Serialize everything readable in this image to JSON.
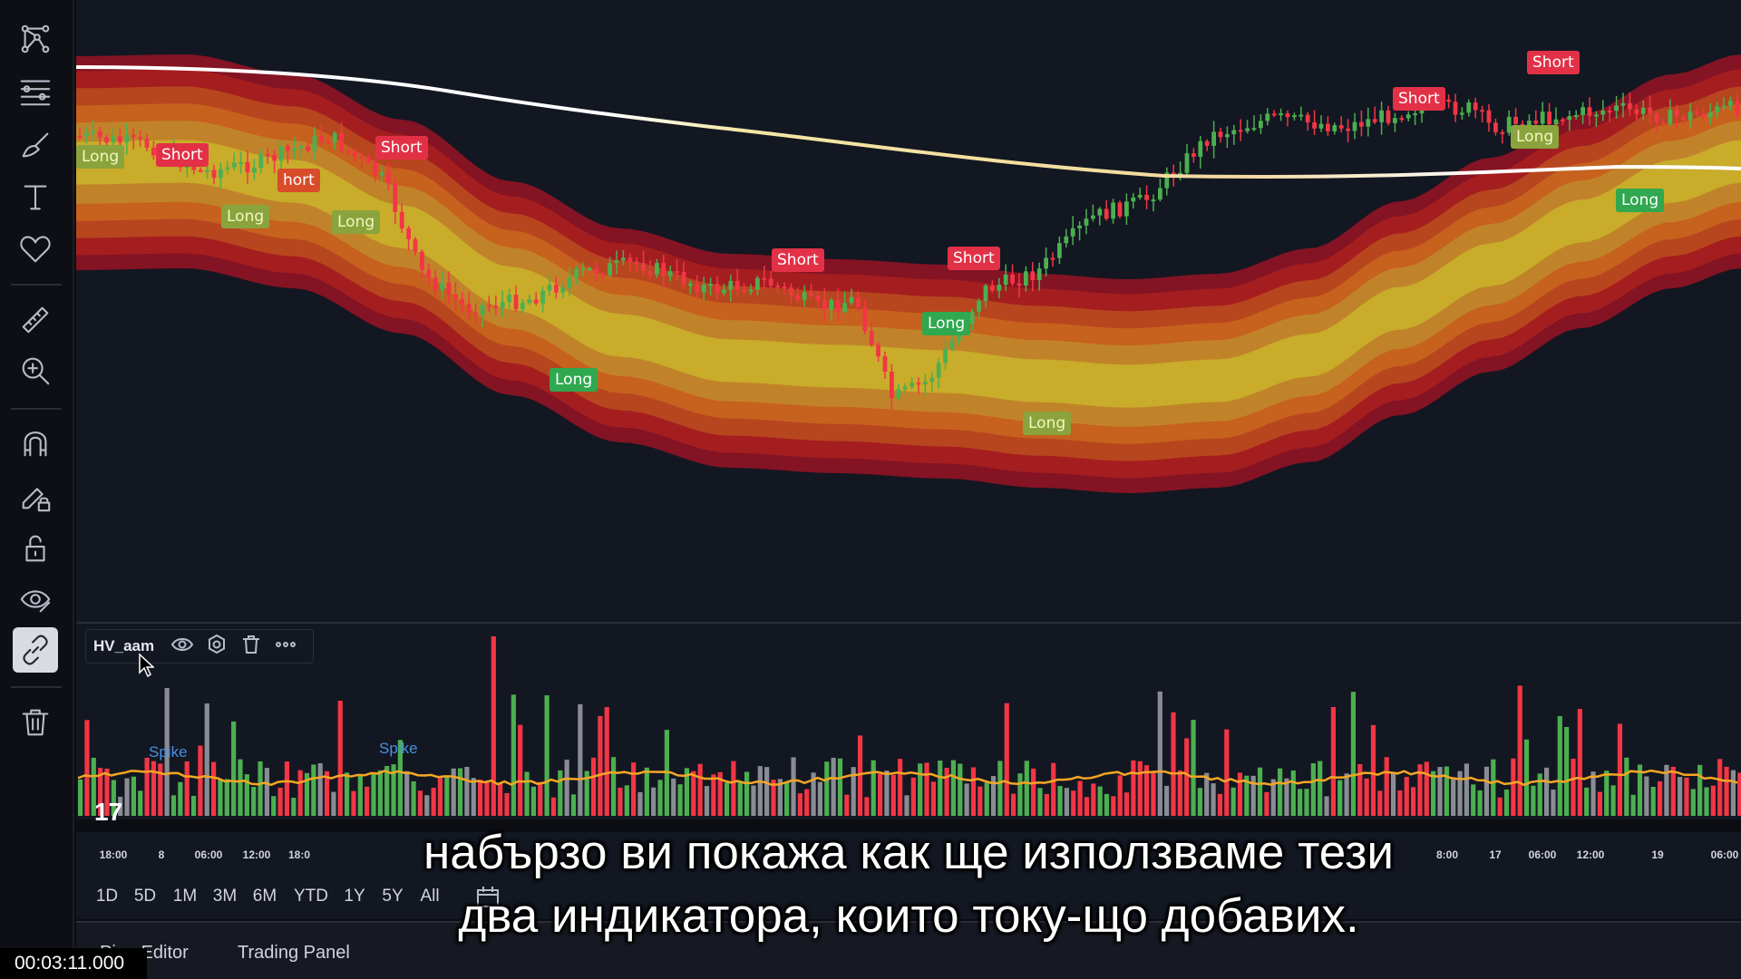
{
  "colors": {
    "bull": "#26a69a",
    "bull_candle": "#4caf50",
    "bear": "#f23645",
    "band_core": "#c9b02a",
    "band_mid": "#c8641e",
    "band_edge": "#8e1424",
    "ma_line": "#ffffff",
    "volume_neutral": "#8a8c94",
    "volume_avg": "#f5a623",
    "spike_label": "#4a90e2"
  },
  "toolbar": {
    "icons": [
      "network-icon",
      "fib-lines-icon",
      "brush-icon",
      "text-icon",
      "heart-icon",
      "ruler-icon",
      "zoom-in-icon",
      "magnet-icon",
      "lock-pencil-icon",
      "unlock-icon",
      "eye-icon",
      "link-icon",
      "trash-icon"
    ],
    "active": "link-icon"
  },
  "signals": [
    {
      "type": "long",
      "label": "Long"
    },
    {
      "type": "short",
      "label": "Short"
    },
    {
      "type": "short",
      "label": "Short"
    },
    {
      "type": "short",
      "label": "hort"
    },
    {
      "type": "long",
      "label": "Long"
    },
    {
      "type": "long",
      "label": "Long"
    },
    {
      "type": "long",
      "label": "Long"
    },
    {
      "type": "short",
      "label": "Short"
    },
    {
      "type": "long",
      "label": "Long"
    },
    {
      "type": "short",
      "label": "Short"
    },
    {
      "type": "long",
      "label": "Long"
    },
    {
      "type": "short",
      "label": "Short"
    },
    {
      "type": "short",
      "label": "Short"
    },
    {
      "type": "long",
      "label": "Long"
    },
    {
      "type": "long",
      "label": "Long"
    }
  ],
  "indicator_legend": {
    "name": "HV_aam",
    "icons": [
      "eye-icon",
      "settings-icon",
      "trash-icon",
      "more-icon"
    ]
  },
  "volume_pane": {
    "spike_labels": [
      "Spike",
      "Spike"
    ]
  },
  "time_axis": {
    "ticks": [
      "18:00",
      "8",
      "06:00",
      "12:00",
      "18:0",
      "8:00",
      "17",
      "06:00",
      "12:00",
      "19",
      "06:00"
    ]
  },
  "range_bar": {
    "buttons": [
      "1D",
      "5D",
      "1M",
      "3M",
      "6M",
      "YTD",
      "1Y",
      "5Y",
      "All"
    ],
    "calendar_icon": "calendar-icon"
  },
  "bottom_panel": {
    "tabs": [
      "Pine Editor",
      "Trading Panel"
    ]
  },
  "subtitles": {
    "line1": "набързо ви покажа как ще използваме тези",
    "line2": "два индикатора, които току-що добавих."
  },
  "video": {
    "timestamp": "00:03:11.000"
  },
  "logo_text": "17"
}
